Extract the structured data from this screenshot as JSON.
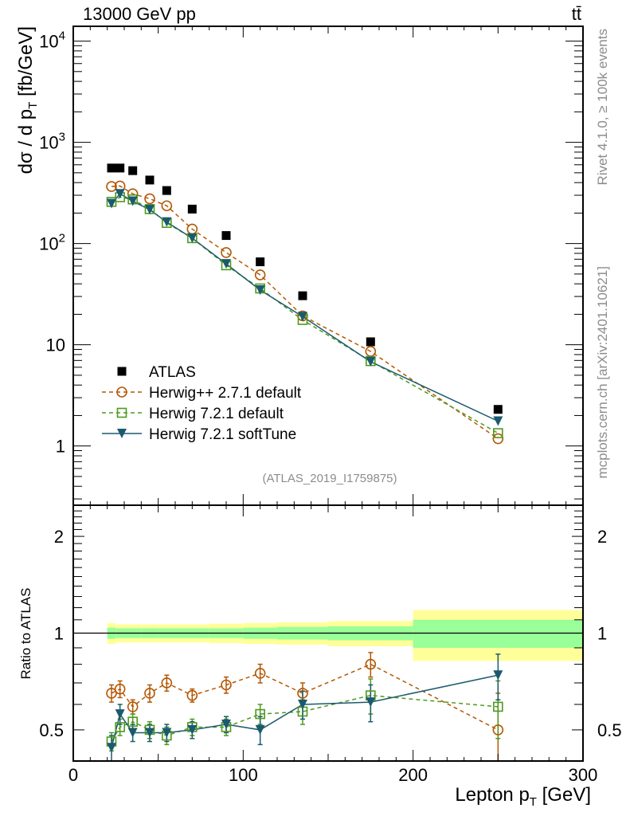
{
  "chart_data": [
    {
      "type": "scatter",
      "panel": "main",
      "title_left": "13000 GeV pp",
      "title_right": "tt̄",
      "ylabel": "dσ / d p_T [fb/GeV]",
      "xlabel": "Lepton p_T [GeV]",
      "yscale": "log",
      "ylim": [
        0.26,
        14000
      ],
      "xlim": [
        0,
        300
      ],
      "ytick_labels": [
        "10^4",
        "10^3",
        "10^2",
        "10",
        "1"
      ],
      "ytick_values": [
        10000,
        1000,
        100,
        10,
        1
      ],
      "x": [
        22.5,
        27.5,
        35,
        45,
        55,
        70,
        90,
        110,
        135,
        175,
        250
      ],
      "bin_edges": [
        20,
        25,
        30,
        40,
        50,
        60,
        80,
        100,
        120,
        150,
        200,
        300
      ],
      "series": [
        {
          "name": "ATLAS",
          "style": "data",
          "color": "#000000",
          "values": [
            557,
            557,
            525,
            424,
            334,
            219,
            120,
            66,
            30.5,
            10.7,
            2.3
          ]
        },
        {
          "name": "Herwig++ 2.7.1 default",
          "style": "circle-dashed",
          "color": "#b35806",
          "values": [
            366,
            370,
            310,
            277,
            236,
            139,
            81.5,
            49,
            19.3,
            8.6,
            1.18
          ]
        },
        {
          "name": "Herwig 7.2.1 default",
          "style": "square-dashed",
          "color": "#4d9a1e",
          "values": [
            258,
            287,
            273,
            219,
            160,
            113,
            61,
            36,
            17.6,
            6.9,
            1.34
          ]
        },
        {
          "name": "Herwig 7.2.1 softTune",
          "style": "triangle-solid",
          "color": "#1b5a6e",
          "values": [
            248,
            310,
            262,
            216,
            163,
            113,
            63,
            34.7,
            19,
            6.8,
            1.76
          ]
        }
      ],
      "legend_placement": "lower-left",
      "annotation": "(ATLAS_2019_I1759875)"
    },
    {
      "type": "scatter",
      "panel": "ratio",
      "ylabel": "Ratio to ATLAS",
      "yscale": "log",
      "ylim": [
        0.4,
        2.5
      ],
      "xlim": [
        0,
        300
      ],
      "ytick_labels": [
        "2",
        "1",
        "0.5"
      ],
      "ytick_values": [
        2,
        1,
        0.5
      ],
      "xtick_labels": [
        "0",
        "100",
        "200",
        "300"
      ],
      "xtick_values": [
        0,
        100,
        200,
        300
      ],
      "x": [
        22.5,
        27.5,
        35,
        45,
        55,
        70,
        90,
        110,
        135,
        175,
        250
      ],
      "bin_edges": [
        20,
        25,
        30,
        40,
        50,
        60,
        80,
        100,
        120,
        150,
        200,
        300
      ],
      "band_inner": [
        0.04,
        0.035,
        0.035,
        0.035,
        0.035,
        0.035,
        0.035,
        0.04,
        0.045,
        0.05,
        0.1
      ],
      "band_outer": [
        0.075,
        0.065,
        0.065,
        0.065,
        0.065,
        0.065,
        0.07,
        0.075,
        0.08,
        0.09,
        0.18
      ],
      "band_colors": {
        "inner": "#99ff99",
        "outer": "#ffff99"
      },
      "series": [
        {
          "name": "Herwig++ 2.7.1 default",
          "color": "#b35806",
          "values": [
            0.65,
            0.67,
            0.59,
            0.65,
            0.7,
            0.64,
            0.69,
            0.75,
            0.65,
            0.8,
            0.5
          ],
          "errors": [
            0.04,
            0.04,
            0.03,
            0.04,
            0.04,
            0.03,
            0.04,
            0.05,
            0.05,
            0.07,
            0.15
          ]
        },
        {
          "name": "Herwig 7.2.1 default",
          "color": "#4d9a1e",
          "values": [
            0.46,
            0.51,
            0.53,
            0.5,
            0.48,
            0.51,
            0.51,
            0.56,
            0.57,
            0.64,
            0.59
          ],
          "errors": [
            0.03,
            0.03,
            0.03,
            0.03,
            0.03,
            0.03,
            0.03,
            0.04,
            0.05,
            0.08,
            0.12
          ]
        },
        {
          "name": "Herwig 7.2.1 softTune",
          "color": "#1b5a6e",
          "values": [
            0.44,
            0.56,
            0.49,
            0.49,
            0.49,
            0.5,
            0.52,
            0.5,
            0.6,
            0.61,
            0.74
          ],
          "errors": [
            0.04,
            0.04,
            0.03,
            0.03,
            0.03,
            0.03,
            0.03,
            0.05,
            0.06,
            0.08,
            0.12
          ]
        }
      ]
    }
  ],
  "side_labels": {
    "rivet": "Rivet 4.1.0, ≥ 100k events",
    "mcplots": "mcplots.cern.ch [arXiv:2401.10621]"
  }
}
